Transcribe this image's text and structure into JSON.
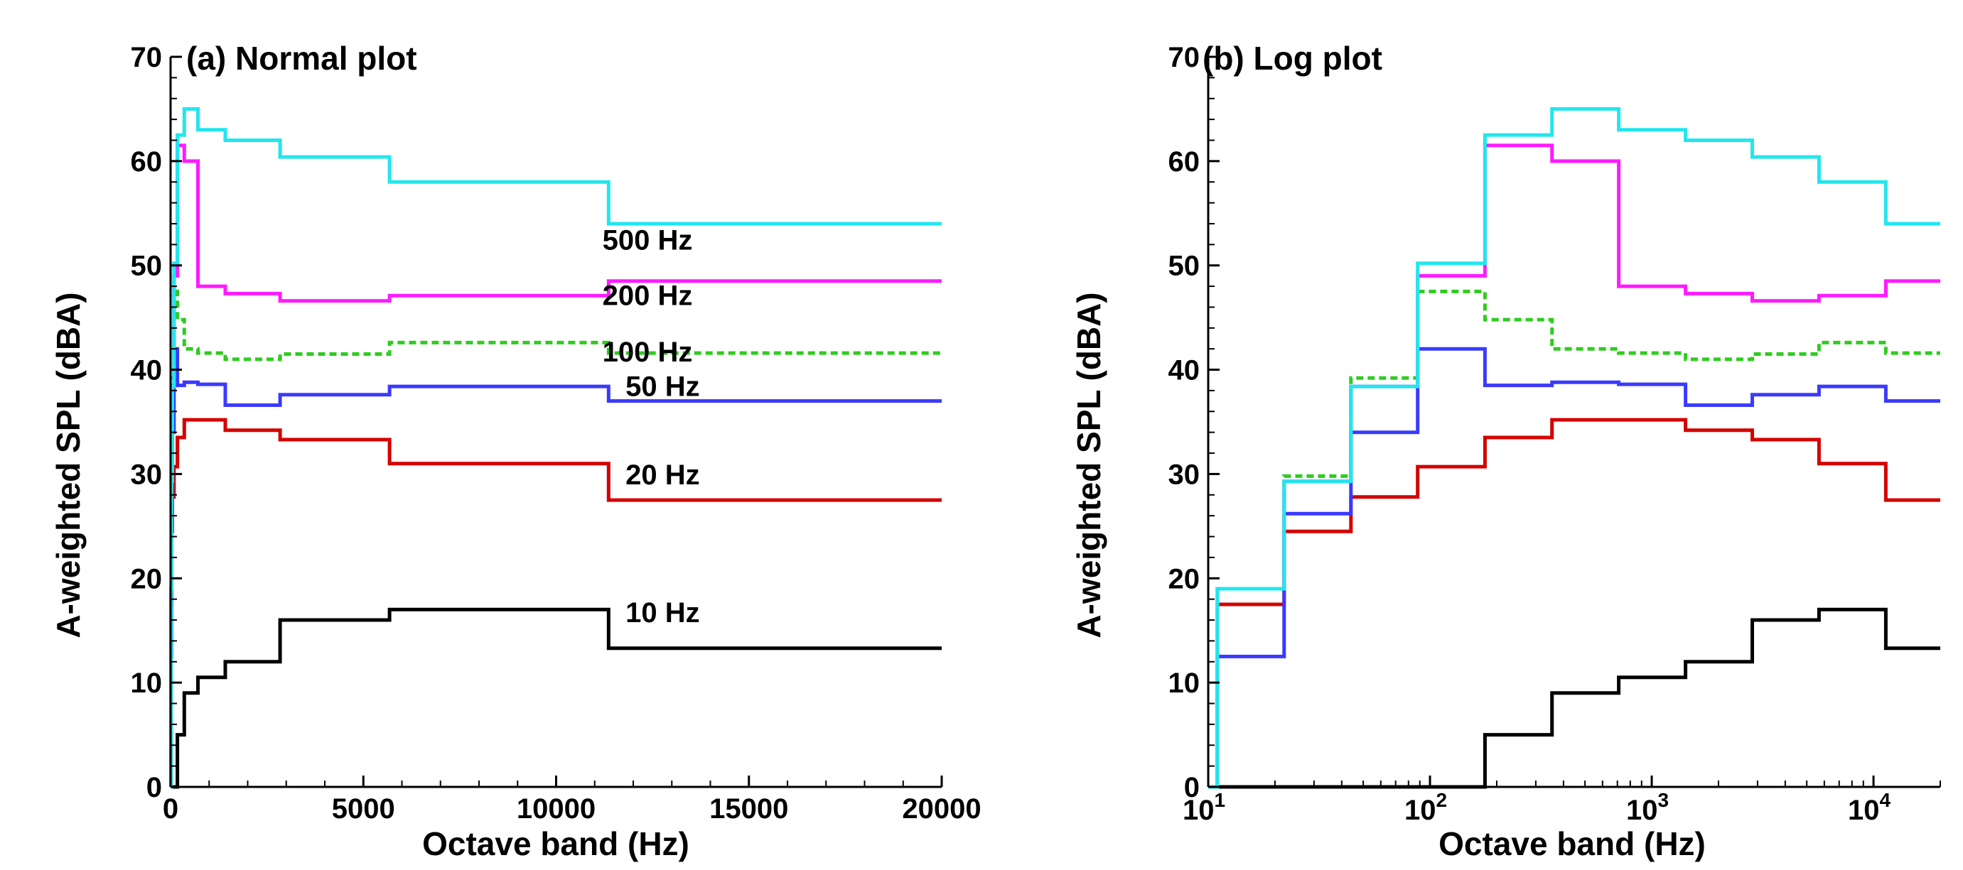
{
  "chart_data": [
    {
      "type": "line",
      "step": true,
      "title": "(a) Normal plot",
      "xlabel": "Octave band (Hz)",
      "ylabel": "A-weighted SPL (dBA)",
      "xscale": "linear",
      "xlim": [
        0,
        20000
      ],
      "ylim": [
        0,
        70
      ],
      "xticks": [
        0,
        5000,
        10000,
        15000,
        20000
      ],
      "xtick_labels": [
        "0",
        "5000",
        "10000",
        "15000",
        "20000"
      ],
      "yticks": [
        0,
        10,
        20,
        30,
        40,
        50,
        60,
        70
      ],
      "ytick_labels": [
        "0",
        "10",
        "20",
        "30",
        "40",
        "50",
        "60",
        "70"
      ],
      "series_labels": [
        {
          "series": "500 Hz",
          "text": "500 Hz"
        },
        {
          "series": "200 Hz",
          "text": "200 Hz"
        },
        {
          "series": "100 Hz",
          "text": "100 Hz"
        },
        {
          "series": "50 Hz",
          "text": "50 Hz"
        },
        {
          "series": "20 Hz",
          "text": "20 Hz"
        },
        {
          "series": "10 Hz",
          "text": "10 Hz"
        }
      ]
    },
    {
      "type": "line",
      "step": true,
      "title": "(b) Log plot",
      "xlabel": "Octave band (Hz)",
      "ylabel": "A-weighted SPL (dBA)",
      "xscale": "log",
      "xlim": [
        10,
        20000
      ],
      "ylim": [
        0,
        70
      ],
      "xticks": [
        10,
        100,
        1000,
        10000
      ],
      "xtick_labels": [
        {
          "base": "10",
          "exp": "1"
        },
        {
          "base": "10",
          "exp": "2"
        },
        {
          "base": "10",
          "exp": "3"
        },
        {
          "base": "10",
          "exp": "4"
        }
      ],
      "yticks": [
        0,
        10,
        20,
        30,
        40,
        50,
        60,
        70
      ],
      "ytick_labels": [
        "0",
        "10",
        "20",
        "30",
        "40",
        "50",
        "60",
        "70"
      ]
    }
  ],
  "band_edges": [
    11,
    22,
    44,
    88,
    177,
    355,
    710,
    1420,
    2840,
    5680,
    11360,
    20000
  ],
  "series": [
    {
      "name": "10 Hz",
      "color": "#000000",
      "dashed": false,
      "values": [
        0,
        0,
        0,
        0,
        5,
        9,
        10.5,
        12,
        16,
        17,
        13.3
      ]
    },
    {
      "name": "20 Hz",
      "color": "#d40000",
      "dashed": false,
      "values": [
        17.5,
        24.5,
        27.8,
        30.7,
        33.5,
        35.2,
        35.2,
        34.2,
        33.3,
        31,
        27.5
      ]
    },
    {
      "name": "50 Hz",
      "color": "#3a3aff",
      "dashed": false,
      "values": [
        12.5,
        26.2,
        34,
        42,
        38.5,
        38.8,
        38.6,
        36.6,
        37.6,
        38.4,
        37
      ]
    },
    {
      "name": "100 Hz",
      "color": "#2ecc1e",
      "dashed": true,
      "values": [
        19,
        29.8,
        39.2,
        47.5,
        44.8,
        42,
        41.6,
        41,
        41.5,
        42.6,
        41.6
      ]
    },
    {
      "name": "200 Hz",
      "color": "#ff1aff",
      "dashed": false,
      "values": [
        19,
        29.3,
        38.4,
        49,
        61.5,
        60,
        48,
        47.3,
        46.6,
        47.1,
        48.5
      ]
    },
    {
      "name": "500 Hz",
      "color": "#22e6ee",
      "dashed": false,
      "values": [
        19,
        29.3,
        38.4,
        50.2,
        62.5,
        65,
        63,
        62,
        60.4,
        58,
        54
      ]
    }
  ],
  "series_label_y": {
    "500 Hz": 51.5,
    "200 Hz": 46.2,
    "100 Hz": 40.8,
    "50 Hz": 37.5,
    "20 Hz": 29.0,
    "10 Hz": 15.8
  },
  "series_label_x": {
    "500 Hz": 11200,
    "200 Hz": 11200,
    "100 Hz": 11200,
    "50 Hz": 11800,
    "20 Hz": 11800,
    "10 Hz": 11800
  }
}
